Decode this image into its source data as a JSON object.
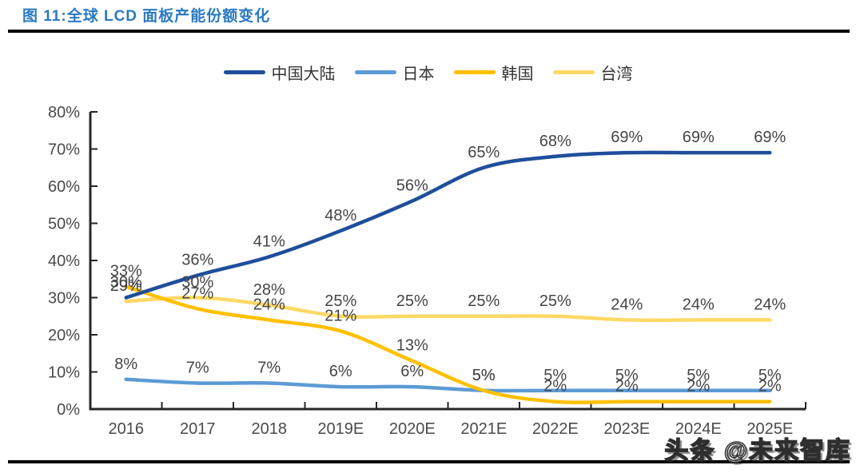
{
  "figure": {
    "title": "图 11:全球 LCD 面板产能份额变化",
    "watermark": "头条 @未来智库"
  },
  "chart_data": {
    "type": "line",
    "title": "全球LCD面板产能份额变化",
    "categories": [
      "2016",
      "2017",
      "2018",
      "2019E",
      "2020E",
      "2021E",
      "2022E",
      "2023E",
      "2024E",
      "2025E"
    ],
    "series": [
      {
        "name": "中国大陆",
        "color": "#1F4E9B",
        "values": [
          30,
          36,
          41,
          48,
          56,
          65,
          68,
          69,
          69,
          69
        ]
      },
      {
        "name": "日本",
        "color": "#5B9BD5",
        "values": [
          8,
          7,
          7,
          6,
          6,
          5,
          5,
          5,
          5,
          5
        ]
      },
      {
        "name": "韩国",
        "color": "#FFC000",
        "values": [
          33,
          27,
          24,
          21,
          13,
          5,
          2,
          2,
          2,
          2
        ]
      },
      {
        "name": "台湾",
        "color": "#FFD966",
        "values": [
          29,
          30,
          28,
          25,
          25,
          25,
          25,
          24,
          24,
          24
        ]
      }
    ],
    "ylim": [
      0,
      80
    ],
    "ytick_labels": [
      "0%",
      "10%",
      "20%",
      "30%",
      "40%",
      "50%",
      "60%",
      "70%",
      "80%"
    ],
    "data_label_suffix": "%",
    "grid": false,
    "data_labels": true,
    "legend_position": "top",
    "axis_color": "#262626",
    "tick_label_color": "#4a4a4a",
    "data_label_color": "#454545"
  }
}
